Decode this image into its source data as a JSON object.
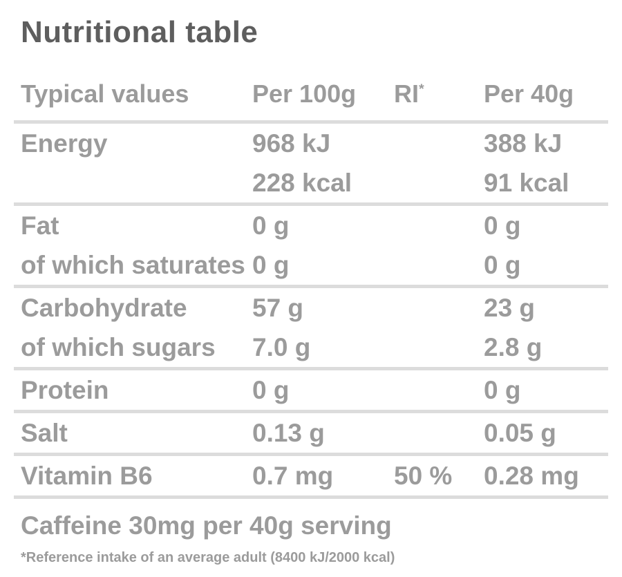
{
  "page": {
    "title": "Nutritional table"
  },
  "colors": {
    "title-color": "#5e5e5e",
    "text-color": "#9b9b9b",
    "divider-color": "#dcdcdc",
    "bg-color": "#ffffff"
  },
  "table": {
    "headers": {
      "typical_values": "Typical values",
      "per_100g": "Per 100g",
      "ri": "RI",
      "ri_sup": "*",
      "per_40g": "Per 40g"
    },
    "rows": [
      {
        "label": "Energy",
        "per100": "968 kJ",
        "ri": "",
        "per40": "388 kJ"
      },
      {
        "label": "",
        "per100": "228 kcal",
        "ri": "",
        "per40": "91 kcal"
      },
      {
        "label": "Fat",
        "per100": "0 g",
        "ri": "",
        "per40": "0 g"
      },
      {
        "label": "of which saturates",
        "per100": "0 g",
        "ri": "",
        "per40": "0 g"
      },
      {
        "label": "Carbohydrate",
        "per100": "57 g",
        "ri": "",
        "per40": "23 g"
      },
      {
        "label": "of which sugars",
        "per100": "7.0 g",
        "ri": "",
        "per40": "2.8 g"
      },
      {
        "label": "Protein",
        "per100": "0 g",
        "ri": "",
        "per40": "0 g"
      },
      {
        "label": "Salt",
        "per100": "0.13 g",
        "ri": "",
        "per40": "0.05 g"
      },
      {
        "label": "Vitamin B6",
        "per100": "0.7 mg",
        "ri": "50 %",
        "per40": "0.28 mg"
      }
    ],
    "caffeine_note": "Caffeine 30mg per 40g serving",
    "footnote": "*Reference intake of an average adult (8400 kJ/2000 kcal)"
  }
}
